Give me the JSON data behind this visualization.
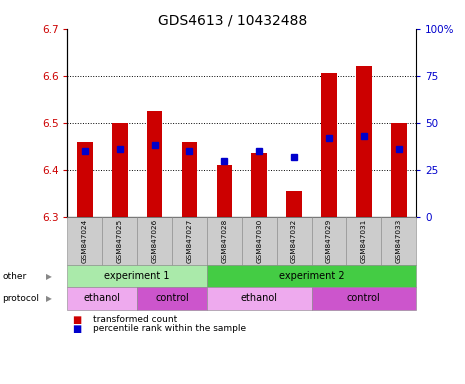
{
  "title": "GDS4613 / 10432488",
  "samples": [
    "GSM847024",
    "GSM847025",
    "GSM847026",
    "GSM847027",
    "GSM847028",
    "GSM847030",
    "GSM847032",
    "GSM847029",
    "GSM847031",
    "GSM847033"
  ],
  "bar_values": [
    6.46,
    6.5,
    6.525,
    6.46,
    6.41,
    6.435,
    6.355,
    6.605,
    6.62,
    6.5
  ],
  "percentile_values": [
    35,
    36,
    38,
    35,
    30,
    35,
    32,
    42,
    43,
    36
  ],
  "ylim_left": [
    6.3,
    6.7
  ],
  "ylim_right": [
    0,
    100
  ],
  "yticks_left": [
    6.3,
    6.4,
    6.5,
    6.6,
    6.7
  ],
  "yticks_right": [
    0,
    25,
    50,
    75,
    100
  ],
  "bar_color": "#cc0000",
  "bar_base": 6.3,
  "dot_color": "#0000cc",
  "axis_label_color_left": "#cc0000",
  "axis_label_color_right": "#0000cc",
  "other_row": [
    {
      "label": "experiment 1",
      "start": 0,
      "end": 4,
      "color": "#aaeaaa"
    },
    {
      "label": "experiment 2",
      "start": 4,
      "end": 10,
      "color": "#44cc44"
    }
  ],
  "protocol_row": [
    {
      "label": "ethanol",
      "start": 0,
      "end": 2,
      "color": "#eeaaee"
    },
    {
      "label": "control",
      "start": 2,
      "end": 4,
      "color": "#cc55cc"
    },
    {
      "label": "ethanol",
      "start": 4,
      "end": 7,
      "color": "#eeaaee"
    },
    {
      "label": "control",
      "start": 7,
      "end": 10,
      "color": "#cc55cc"
    }
  ],
  "legend_red_label": "transformed count",
  "legend_blue_label": "percentile rank within the sample",
  "tick_bg_color": "#cccccc",
  "fig_width": 4.65,
  "fig_height": 3.84,
  "dpi": 100
}
